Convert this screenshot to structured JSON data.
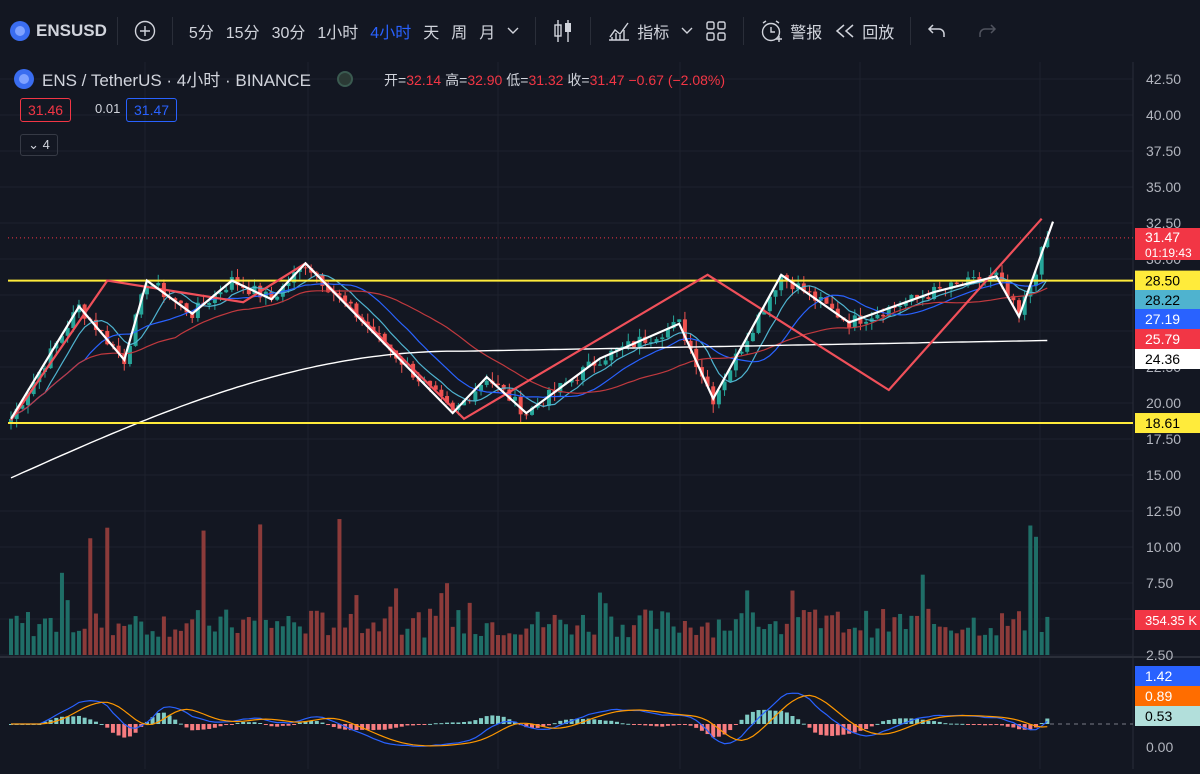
{
  "toolbar": {
    "symbol": "ENSUSD",
    "add_icon": "plus-circle-icon",
    "intervals": [
      "5分",
      "15分",
      "30分",
      "1小时",
      "4小时",
      "天",
      "周",
      "月"
    ],
    "active_interval": "4小时",
    "interval_menu_icon": "chevron-down-icon",
    "chart_type_icon": "candles-icon",
    "indicators_label": "指标",
    "indicators_menu_icon": "chevron-down-icon",
    "layout_icon": "grid-icon",
    "alert_label": "警报",
    "replay_label": "回放",
    "undo_icon": "undo-icon",
    "redo_icon": "redo-icon"
  },
  "legend": {
    "title": "ENS / TetherUS · 4小时 · BINANCE",
    "open_label": "开=",
    "open": "32.14",
    "high_label": "高=",
    "high": "32.90",
    "low_label": "低=",
    "low": "31.32",
    "close_label": "收=",
    "close": "31.47",
    "change": "−0.67 (−2.08%)",
    "bid": "31.46",
    "spread": "0.01",
    "ask": "31.47",
    "indicators_collapsed_count": "4"
  },
  "colors": {
    "background": "#131722",
    "up": "#26a69a",
    "down": "#ef5350",
    "yellow": "#ffeb3b",
    "blue": "#2962ff",
    "zigzag_red": "#f0505a",
    "zigzag_white": "#ffffff"
  },
  "chart_data": {
    "type": "candlestick",
    "y_ticks": [
      "42.50",
      "40.00",
      "37.50",
      "35.00",
      "32.50",
      "30.00",
      "27.50",
      "25.00",
      "22.50",
      "20.00",
      "17.50",
      "15.00",
      "12.50",
      "10.00",
      "7.50",
      "5.00",
      "2.50"
    ],
    "price_range": [
      12.0,
      43.5
    ],
    "price_label": "31.47",
    "countdown": "01:19:43",
    "horizontal_levels": [
      28.5,
      18.61
    ],
    "ma_values": [
      {
        "value": "28.50",
        "bg": "#ffeb3b",
        "fg": "#000000"
      },
      {
        "value": "28.22",
        "bg": "#4fb3cf",
        "fg": "#000000"
      },
      {
        "value": "27.19",
        "bg": "#2962ff",
        "fg": "#ffffff"
      },
      {
        "value": "25.79",
        "bg": "#f23645",
        "fg": "#ffffff"
      },
      {
        "value": "24.36",
        "bg": "#ffffff",
        "fg": "#000000"
      },
      {
        "value": "18.61",
        "bg": "#ffeb3b",
        "fg": "#000000"
      }
    ],
    "volume_label": "354.35 K",
    "macd_labels": [
      {
        "value": "1.42",
        "bg": "#2962ff",
        "fg": "#ffffff"
      },
      {
        "value": "0.89",
        "bg": "#ff6d00",
        "fg": "#ffffff"
      },
      {
        "value": "0.53",
        "bg": "#b2dfdb",
        "fg": "#000000"
      }
    ],
    "macd_zero_label": "0.00",
    "zigzag_red": [
      [
        0,
        18.8
      ],
      [
        17,
        28.5
      ],
      [
        41,
        27.0
      ],
      [
        52,
        29.7
      ],
      [
        80,
        18.9
      ],
      [
        123,
        28.9
      ],
      [
        155,
        20.9
      ],
      [
        182,
        32.8
      ]
    ],
    "zigzag_white": [
      [
        0,
        18.9
      ],
      [
        12,
        26.7
      ],
      [
        20,
        23.0
      ],
      [
        24,
        28.5
      ],
      [
        32,
        26.2
      ],
      [
        39,
        28.5
      ],
      [
        46,
        27.2
      ],
      [
        52,
        29.7
      ],
      [
        78,
        19.3
      ],
      [
        84,
        21.8
      ],
      [
        91,
        19.3
      ],
      [
        104,
        23.1
      ],
      [
        118,
        25.5
      ],
      [
        124,
        20.3
      ],
      [
        136,
        28.9
      ],
      [
        148,
        25.6
      ],
      [
        163,
        27.7
      ],
      [
        174,
        28.8
      ],
      [
        178,
        26.0
      ],
      [
        184,
        32.6
      ]
    ],
    "candles_n": 184
  }
}
